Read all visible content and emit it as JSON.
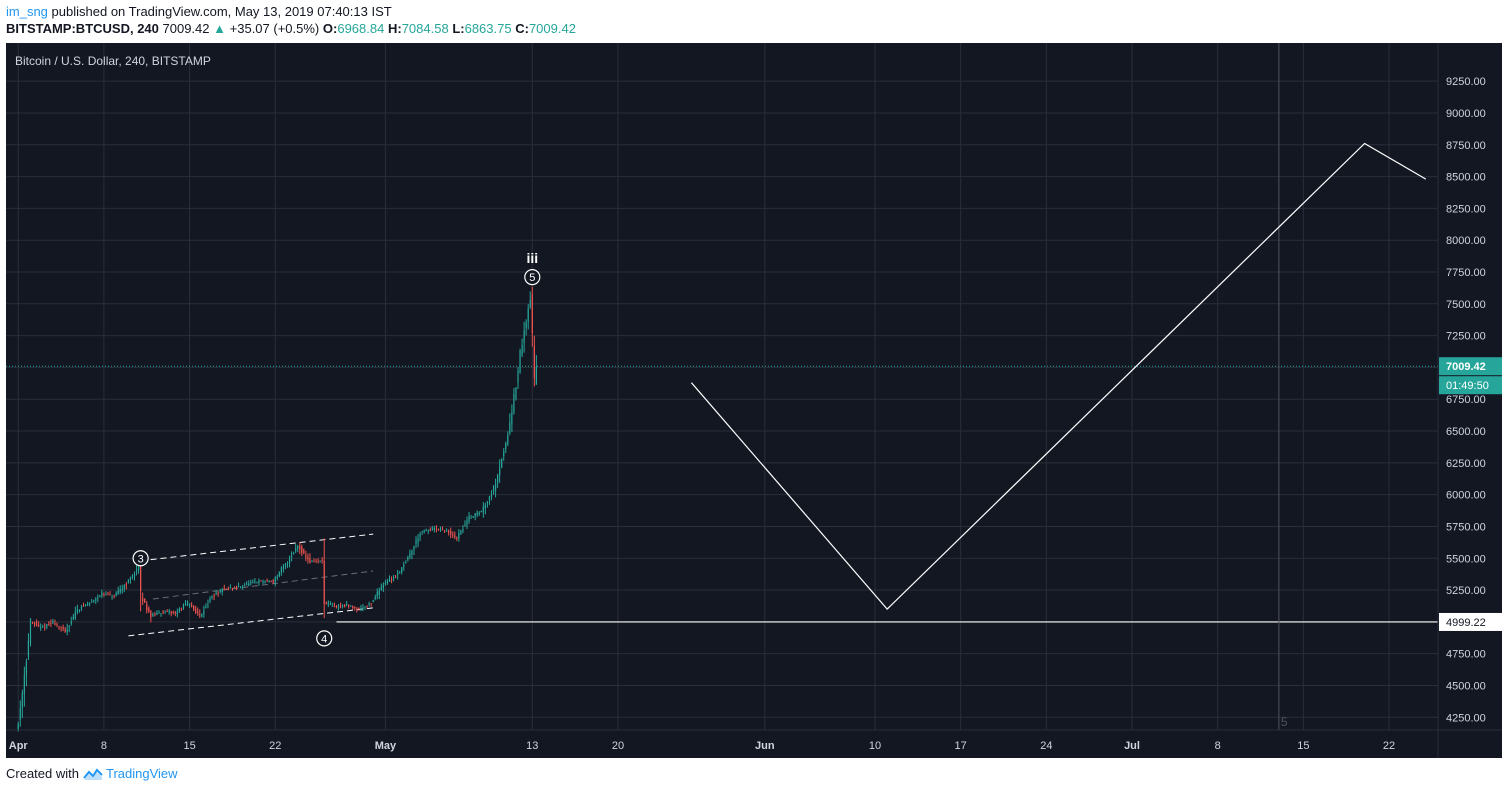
{
  "header": {
    "user": "im_sng",
    "published_text": "published on TradingView.com, May 13, 2019 07:40:13 IST",
    "symbol": "BITSTAMP:BTCUSD, 240",
    "last": "7009.42",
    "change_arrow": "▲",
    "change": "+35.07 (+0.5%)",
    "o_label": "O:",
    "o_value": "6968.84",
    "h_label": "H:",
    "h_value": "7084.58",
    "l_label": "L:",
    "l_value": "6863.75",
    "c_label": "C:",
    "c_value": "7009.42"
  },
  "footer": {
    "created_with": "Created with",
    "brand": "TradingView"
  },
  "colors": {
    "background": "#131722",
    "grid": "#2a2e39",
    "up": "#26a69a",
    "down": "#ef5350",
    "axis_text": "#d1d4dc",
    "drawing": "#ffffff",
    "price_line": "#26a69a"
  },
  "chart_data": {
    "type": "candlestick",
    "title": "Bitcoin / U.S. Dollar, 240, BITSTAMP",
    "xlabel": "",
    "ylabel": "",
    "ylim": [
      4150,
      9550
    ],
    "x_range": [
      "2019-03-31",
      "2019-07-26"
    ],
    "y_ticks": [
      "4250.00",
      "4500.00",
      "4750.00",
      "5000.00",
      "5250.00",
      "5500.00",
      "5750.00",
      "6000.00",
      "6250.00",
      "6500.00",
      "6750.00",
      "7000.00",
      "7250.00",
      "7500.00",
      "7750.00",
      "8000.00",
      "8250.00",
      "8500.00",
      "8750.00",
      "9000.00",
      "9250.00"
    ],
    "x_ticks": [
      {
        "label": "Apr",
        "date": "2019-04-01",
        "bold": true
      },
      {
        "label": "8",
        "date": "2019-04-08",
        "bold": false
      },
      {
        "label": "15",
        "date": "2019-04-15",
        "bold": false
      },
      {
        "label": "22",
        "date": "2019-04-22",
        "bold": false
      },
      {
        "label": "May",
        "date": "2019-05-01",
        "bold": true
      },
      {
        "label": "13",
        "date": "2019-05-13",
        "bold": false
      },
      {
        "label": "20",
        "date": "2019-05-20",
        "bold": false
      },
      {
        "label": "Jun",
        "date": "2019-06-01",
        "bold": true
      },
      {
        "label": "10",
        "date": "2019-06-10",
        "bold": false
      },
      {
        "label": "17",
        "date": "2019-06-17",
        "bold": false
      },
      {
        "label": "24",
        "date": "2019-06-24",
        "bold": false
      },
      {
        "label": "Jul",
        "date": "2019-07-01",
        "bold": true
      },
      {
        "label": "8",
        "date": "2019-07-08",
        "bold": false
      },
      {
        "label": "15",
        "date": "2019-07-15",
        "bold": false
      },
      {
        "label": "22",
        "date": "2019-07-22",
        "bold": false
      }
    ],
    "price_path": [
      [
        "2019-04-01",
        4160
      ],
      [
        "2019-04-01",
        4200
      ],
      [
        "2019-04-02",
        4850
      ],
      [
        "2019-04-02",
        5000
      ],
      [
        "2019-04-03",
        4950
      ],
      [
        "2019-04-04",
        5000
      ],
      [
        "2019-04-05",
        4920
      ],
      [
        "2019-04-06",
        5100
      ],
      [
        "2019-04-07",
        5150
      ],
      [
        "2019-04-08",
        5220
      ],
      [
        "2019-04-09",
        5200
      ],
      [
        "2019-04-10",
        5300
      ],
      [
        "2019-04-11",
        5430
      ],
      [
        "2019-04-11",
        5200
      ],
      [
        "2019-04-12",
        5050
      ],
      [
        "2019-04-13",
        5080
      ],
      [
        "2019-04-14",
        5070
      ],
      [
        "2019-04-15",
        5150
      ],
      [
        "2019-04-16",
        5050
      ],
      [
        "2019-04-17",
        5200
      ],
      [
        "2019-04-18",
        5260
      ],
      [
        "2019-04-19",
        5270
      ],
      [
        "2019-04-20",
        5300
      ],
      [
        "2019-04-21",
        5320
      ],
      [
        "2019-04-22",
        5320
      ],
      [
        "2019-04-23",
        5450
      ],
      [
        "2019-04-24",
        5600
      ],
      [
        "2019-04-25",
        5470
      ],
      [
        "2019-04-26",
        5480
      ],
      [
        "2019-04-26",
        5150
      ],
      [
        "2019-04-27",
        5120
      ],
      [
        "2019-04-28",
        5130
      ],
      [
        "2019-04-29",
        5100
      ],
      [
        "2019-04-30",
        5150
      ],
      [
        "2019-05-01",
        5300
      ],
      [
        "2019-05-02",
        5360
      ],
      [
        "2019-05-03",
        5500
      ],
      [
        "2019-05-04",
        5700
      ],
      [
        "2019-05-05",
        5730
      ],
      [
        "2019-05-06",
        5720
      ],
      [
        "2019-05-07",
        5660
      ],
      [
        "2019-05-08",
        5820
      ],
      [
        "2019-05-09",
        5870
      ],
      [
        "2019-05-10",
        6050
      ],
      [
        "2019-05-11",
        6400
      ],
      [
        "2019-05-12",
        6950
      ],
      [
        "2019-05-12",
        7100
      ],
      [
        "2019-05-13",
        7550
      ],
      [
        "2019-05-13",
        7200
      ],
      [
        "2019-05-13",
        6900
      ],
      [
        "2019-05-13",
        7009.42
      ]
    ],
    "current_price": {
      "value": 7009.42,
      "label": "7009.42",
      "countdown": "01:49:50"
    },
    "level_line": {
      "value": 4999.22,
      "label": "4999.22",
      "x_from": "2019-04-27"
    },
    "projection": [
      [
        "2019-05-26",
        6880
      ],
      [
        "2019-06-11",
        5100
      ],
      [
        "2019-07-20",
        8760
      ],
      [
        "2019-07-25",
        8480
      ]
    ],
    "channel_lines": [
      {
        "from": [
          "2019-04-11",
          5480
        ],
        "to": [
          "2019-04-30",
          5690
        ],
        "dash": true
      },
      {
        "from": [
          "2019-04-10",
          4890
        ],
        "to": [
          "2019-04-30",
          5110
        ],
        "dash": true
      },
      {
        "from": [
          "2019-04-12",
          5180
        ],
        "to": [
          "2019-04-30",
          5400
        ],
        "dash": true,
        "faint": true
      }
    ],
    "annotations": [
      {
        "text": "3",
        "date": "2019-04-11",
        "price": 5500,
        "circled": true
      },
      {
        "text": "4",
        "date": "2019-04-26",
        "price": 4870,
        "circled": true
      },
      {
        "text": "5",
        "date": "2019-05-13",
        "price": 7710,
        "circled": true
      },
      {
        "text": "iii",
        "date": "2019-05-13",
        "price": 7860,
        "circled": false
      }
    ],
    "vertical_marker": {
      "date": "2019-07-13",
      "label": "5"
    }
  }
}
